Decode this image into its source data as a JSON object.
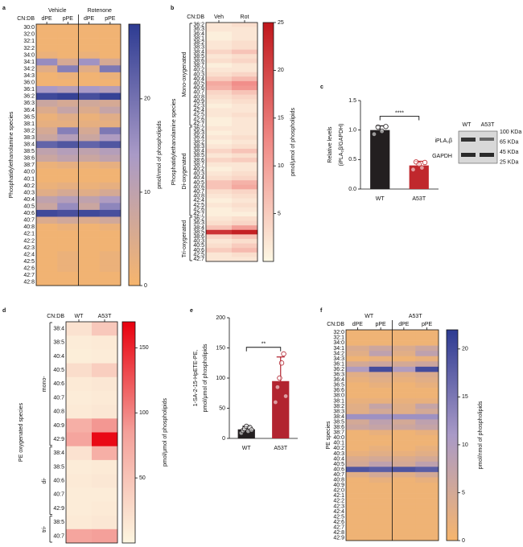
{
  "chart_data": [
    {
      "type": "heatmap",
      "panel": "a",
      "row_header": "CN:DB",
      "ytitle": "Phosphatidylethanolamine species",
      "column_groups": [
        "Vehicle",
        "Rotenone"
      ],
      "columns": [
        "dPE",
        "pPE",
        "dPE",
        "pPE"
      ],
      "categories": [
        "30:0",
        "32:0",
        "32:1",
        "32:2",
        "34:0",
        "34:1",
        "34:2",
        "34:3",
        "36:0",
        "36:1",
        "36:2",
        "36:3",
        "36:4",
        "36:5",
        "38:1",
        "38:2",
        "38:3",
        "38:4",
        "38:5",
        "38:6",
        "38:7",
        "40:0",
        "40:1",
        "40:2",
        "40:3",
        "40:4",
        "40:5",
        "40:6",
        "40:7",
        "40:8",
        "42:1",
        "42:2",
        "42:3",
        "42:4",
        "42:5",
        "42:6",
        "42:7",
        "42:8"
      ],
      "values": [
        [
          1,
          1,
          1,
          1
        ],
        [
          1,
          1,
          1,
          1
        ],
        [
          1,
          1,
          1,
          1
        ],
        [
          1,
          1,
          1,
          1
        ],
        [
          2,
          1,
          2,
          1
        ],
        [
          16,
          6,
          15,
          6
        ],
        [
          4,
          18,
          4,
          19
        ],
        [
          1,
          2,
          1,
          2
        ],
        [
          1,
          1,
          1,
          1
        ],
        [
          14,
          12,
          14,
          12
        ],
        [
          26,
          27,
          25,
          27
        ],
        [
          8,
          6,
          7,
          6
        ],
        [
          5,
          9,
          5,
          9
        ],
        [
          2,
          4,
          2,
          4
        ],
        [
          3,
          3,
          3,
          3
        ],
        [
          6,
          18,
          6,
          19
        ],
        [
          8,
          12,
          8,
          13
        ],
        [
          22,
          24,
          22,
          24
        ],
        [
          10,
          12,
          10,
          12
        ],
        [
          8,
          10,
          8,
          10
        ],
        [
          2,
          3,
          2,
          3
        ],
        [
          1,
          1,
          1,
          1
        ],
        [
          1,
          1,
          1,
          1
        ],
        [
          2,
          3,
          2,
          3
        ],
        [
          4,
          6,
          4,
          6
        ],
        [
          10,
          12,
          10,
          13
        ],
        [
          8,
          16,
          8,
          17
        ],
        [
          26,
          25,
          26,
          25
        ],
        [
          5,
          7,
          5,
          7
        ],
        [
          1,
          2,
          1,
          2
        ],
        [
          1,
          1,
          1,
          1
        ],
        [
          1,
          1,
          1,
          1
        ],
        [
          1,
          1,
          1,
          1
        ],
        [
          1,
          2,
          1,
          2
        ],
        [
          1,
          2,
          1,
          2
        ],
        [
          1,
          2,
          1,
          2
        ],
        [
          1,
          1,
          1,
          1
        ],
        [
          1,
          1,
          1,
          1
        ]
      ],
      "zlim": [
        0,
        28
      ],
      "zticks": [
        0,
        10,
        20
      ],
      "colorbar_label": "pmol/nmol of phospholipids",
      "colormap": [
        "#f6b56d",
        "#a99ac7",
        "#2d3b92"
      ]
    },
    {
      "type": "heatmap",
      "panel": "b",
      "row_header": "CN:DB",
      "ytitle": "Phosphatidylethanolamine species",
      "columns": [
        "Veh",
        "Rot"
      ],
      "row_groups": [
        {
          "name": "Mono-oxygenated",
          "categories": [
            "36:2",
            "36:3",
            "36:4",
            "38:1",
            "38:2",
            "38:3",
            "38:4",
            "38:5",
            "38:6",
            "38:7",
            "40:2",
            "40:3",
            "40:4",
            "40:5",
            "40:6",
            "40:7",
            "40:8",
            "40:9",
            "42:3",
            "42:4",
            "42:5",
            "42:6",
            "42:7"
          ]
        },
        {
          "name": "Di-oxygenated",
          "categories": [
            "36:2",
            "36:3",
            "36:4",
            "38:2",
            "38:3",
            "38:4",
            "38:5",
            "38:6",
            "38:7",
            "40:2",
            "40:3",
            "40:4",
            "40:5",
            "40:6",
            "40:7",
            "40:8",
            "42:4",
            "42:5",
            "42:6",
            "42:7"
          ]
        },
        {
          "name": "Tri-oxygenated",
          "categories": [
            "36:2",
            "36:3",
            "38:4",
            "38:5",
            "38:6",
            "40:3",
            "40:5",
            "40:6",
            "42:5",
            "42:7"
          ]
        }
      ],
      "values": [
        [
          2,
          3
        ],
        [
          2,
          2
        ],
        [
          1,
          2
        ],
        [
          1,
          2
        ],
        [
          2,
          3
        ],
        [
          2,
          3
        ],
        [
          4,
          6
        ],
        [
          2,
          3
        ],
        [
          3,
          4
        ],
        [
          1,
          2
        ],
        [
          2,
          2
        ],
        [
          3,
          4
        ],
        [
          5,
          7
        ],
        [
          9,
          12
        ],
        [
          8,
          11
        ],
        [
          4,
          6
        ],
        [
          3,
          4
        ],
        [
          2,
          3
        ],
        [
          1,
          2
        ],
        [
          2,
          2
        ],
        [
          2,
          3
        ],
        [
          1,
          2
        ],
        [
          1,
          2
        ],
        [
          2,
          2
        ],
        [
          1,
          2
        ],
        [
          2,
          3
        ],
        [
          1,
          2
        ],
        [
          2,
          3
        ],
        [
          4,
          6
        ],
        [
          2,
          3
        ],
        [
          4,
          5
        ],
        [
          2,
          2
        ],
        [
          1,
          2
        ],
        [
          2,
          3
        ],
        [
          3,
          4
        ],
        [
          6,
          8
        ],
        [
          6,
          9
        ],
        [
          3,
          4
        ],
        [
          2,
          3
        ],
        [
          1,
          2
        ],
        [
          2,
          3
        ],
        [
          1,
          2
        ],
        [
          1,
          1
        ],
        [
          2,
          3
        ],
        [
          3,
          4
        ],
        [
          6,
          10
        ],
        [
          22,
          24
        ],
        [
          4,
          6
        ],
        [
          2,
          3
        ],
        [
          3,
          5
        ],
        [
          5,
          7
        ],
        [
          2,
          3
        ],
        [
          2,
          2
        ]
      ],
      "zlim": [
        0,
        25
      ],
      "zticks": [
        5,
        10,
        15,
        20,
        25
      ],
      "colorbar_label": "pmol/μmol of phospholipids",
      "colormap": [
        "#fdf8e4",
        "#f08a86",
        "#c0171c"
      ]
    },
    {
      "type": "bar",
      "panel": "c",
      "ylabel": [
        "Relative levels",
        "(iPLA₂β/GAPDH)"
      ],
      "categories": [
        "WT",
        "A53T"
      ],
      "values": [
        1.0,
        0.4
      ],
      "errors": [
        0.07,
        0.07
      ],
      "points": [
        [
          0.93,
          1.05,
          0.98,
          1.06
        ],
        [
          0.33,
          0.46,
          0.42,
          0.36,
          0.45
        ]
      ],
      "colors": [
        "#231f20",
        "#c0282d"
      ],
      "significance": "****",
      "ylim": [
        0,
        1.5
      ],
      "yticks": [
        {
          "value": 0,
          "label": "0.0"
        },
        0.5,
        {
          "value": 1,
          "label": "1.0"
        },
        1.5
      ],
      "blot": {
        "lanes": [
          "WT",
          "A53T"
        ],
        "bands": [
          "iPLA₂β",
          "GAPDH"
        ],
        "markers": [
          "100 KDa",
          "65 KDa",
          "45 KDa",
          "25 KDa"
        ]
      }
    },
    {
      "type": "heatmap",
      "panel": "d",
      "row_header": "CN:DB",
      "ytitle": "PE oxygenated species",
      "columns": [
        "WT",
        "A53T"
      ],
      "row_groups": [
        {
          "name": "mono-",
          "categories": [
            "38:4",
            "38:5",
            "40:4",
            "40:5",
            "40:6",
            "40:7",
            "40:8",
            "40:9",
            "42:9"
          ]
        },
        {
          "name": "di-",
          "categories": [
            "38:4",
            "38:5",
            "40:6",
            "40:7",
            "42:9"
          ]
        },
        {
          "name": "tri-",
          "categories": [
            "38:5",
            "40:7"
          ]
        }
      ],
      "values": [
        [
          20,
          45
        ],
        [
          10,
          12
        ],
        [
          8,
          10
        ],
        [
          25,
          40
        ],
        [
          12,
          15
        ],
        [
          10,
          12
        ],
        [
          12,
          15
        ],
        [
          70,
          90
        ],
        [
          80,
          165
        ],
        [
          20,
          70
        ],
        [
          10,
          12
        ],
        [
          12,
          15
        ],
        [
          10,
          10
        ],
        [
          10,
          12
        ],
        [
          12,
          15
        ],
        [
          80,
          85
        ]
      ],
      "zlim": [
        0,
        170
      ],
      "zticks": [
        50,
        100,
        150
      ],
      "colorbar_label": "pmol/μmol of phospholipids",
      "colormap": [
        "#fdf6e0",
        "#f4a09a",
        "#e8000e"
      ]
    },
    {
      "type": "bar",
      "panel": "e",
      "ylabel": [
        "1-SA-2-15-HpETE-PE,",
        "pmol/μmol of phospholipids"
      ],
      "categories": [
        "WT",
        "A53T"
      ],
      "values": [
        15,
        95
      ],
      "errors": [
        5,
        40
      ],
      "points": [
        [
          9,
          13,
          16,
          20,
          12,
          18,
          14
        ],
        [
          60,
          85,
          100,
          125,
          140,
          70
        ]
      ],
      "colors": [
        "#231f20",
        "#b22430"
      ],
      "significance": "**",
      "ylim": [
        0,
        200
      ],
      "yticks": [
        0,
        50,
        100,
        150,
        200
      ]
    },
    {
      "type": "heatmap",
      "panel": "f",
      "row_header": "CN:DB",
      "ytitle": "PE species",
      "column_groups": [
        "WT",
        "A53T"
      ],
      "columns": [
        "dPE",
        "pPE",
        "dPE",
        "pPE"
      ],
      "categories": [
        "32:0",
        "32:1",
        "34:0",
        "34:1",
        "34:2",
        "34:3",
        "36:1",
        "36:2",
        "36:3",
        "36:4",
        "36:5",
        "36:6",
        "38:0",
        "38:1",
        "38:2",
        "38:3",
        "38:4",
        "38:5",
        "38:6",
        "38:7",
        "40:0",
        "40:1",
        "40:2",
        "40:3",
        "40:4",
        "40:5",
        "40:6",
        "40:7",
        "40:8",
        "40:9",
        "42:0",
        "42:1",
        "42:2",
        "42:3",
        "42:4",
        "42:5",
        "42:6",
        "42:7",
        "42:8",
        "42:9"
      ],
      "values": [
        [
          1,
          1,
          1,
          1
        ],
        [
          1,
          1,
          1,
          1
        ],
        [
          1,
          1,
          1,
          1
        ],
        [
          4,
          6,
          4,
          6
        ],
        [
          3,
          8,
          3,
          8
        ],
        [
          1,
          2,
          1,
          2
        ],
        [
          5,
          6,
          5,
          6
        ],
        [
          10,
          20,
          10,
          20
        ],
        [
          3,
          4,
          3,
          4
        ],
        [
          2,
          3,
          2,
          3
        ],
        [
          1,
          2,
          1,
          2
        ],
        [
          1,
          1,
          1,
          1
        ],
        [
          1,
          1,
          1,
          1
        ],
        [
          2,
          2,
          2,
          2
        ],
        [
          3,
          7,
          3,
          7
        ],
        [
          3,
          5,
          3,
          5
        ],
        [
          12,
          12,
          12,
          12
        ],
        [
          5,
          8,
          5,
          8
        ],
        [
          6,
          7,
          6,
          7
        ],
        [
          1,
          2,
          1,
          2
        ],
        [
          1,
          1,
          1,
          1
        ],
        [
          1,
          1,
          1,
          1
        ],
        [
          1,
          2,
          1,
          2
        ],
        [
          2,
          3,
          2,
          3
        ],
        [
          4,
          5,
          4,
          5
        ],
        [
          5,
          8,
          5,
          8
        ],
        [
          19,
          18,
          19,
          18
        ],
        [
          3,
          5,
          3,
          5
        ],
        [
          1,
          2,
          1,
          2
        ],
        [
          1,
          1,
          1,
          1
        ],
        [
          1,
          1,
          1,
          1
        ],
        [
          1,
          1,
          1,
          1
        ],
        [
          1,
          1,
          1,
          1
        ],
        [
          1,
          1,
          1,
          1
        ],
        [
          1,
          1,
          1,
          1
        ],
        [
          1,
          1,
          1,
          1
        ],
        [
          1,
          1,
          1,
          1
        ],
        [
          1,
          1,
          1,
          1
        ],
        [
          1,
          1,
          1,
          1
        ],
        [
          1,
          1,
          1,
          1
        ]
      ],
      "zlim": [
        0,
        22
      ],
      "zticks": [
        0,
        5,
        10,
        15,
        20
      ],
      "colorbar_label": "pmol/nmol of phospholipids",
      "colormap": [
        "#f6b56d",
        "#a99ac7",
        "#2d3b92"
      ]
    }
  ]
}
